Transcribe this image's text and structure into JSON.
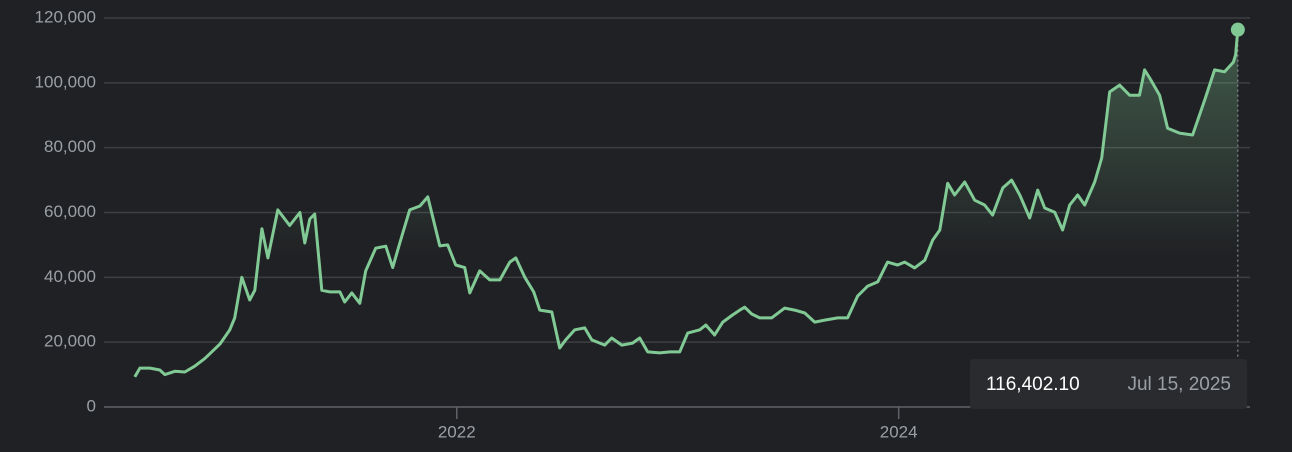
{
  "chart_data": {
    "type": "line",
    "x": [
      2020.543,
      2020.566,
      2020.611,
      2020.656,
      2020.679,
      2020.724,
      2020.769,
      2020.814,
      2020.86,
      2020.891,
      2020.928,
      2020.973,
      2020.995,
      2021.027,
      2021.063,
      2021.086,
      2021.118,
      2021.145,
      2021.19,
      2021.244,
      2021.29,
      2021.312,
      2021.335,
      2021.357,
      2021.389,
      2021.425,
      2021.471,
      2021.493,
      2021.525,
      2021.561,
      2021.588,
      2021.633,
      2021.679,
      2021.71,
      2021.742,
      2021.787,
      2021.833,
      2021.869,
      2021.923,
      2021.959,
      2021.995,
      2022.036,
      2022.059,
      2022.104,
      2022.149,
      2022.195,
      2022.24,
      2022.267,
      2022.308,
      2022.348,
      2022.376,
      2022.43,
      2022.466,
      2022.493,
      2022.534,
      2022.579,
      2022.611,
      2022.67,
      2022.701,
      2022.747,
      2022.796,
      2022.828,
      2022.864,
      2022.919,
      2022.964,
      2023.009,
      2023.045,
      2023.1,
      2023.127,
      2023.167,
      2023.204,
      2023.249,
      2023.281,
      2023.303,
      2023.335,
      2023.371,
      2023.425,
      2023.484,
      2023.529,
      2023.575,
      2023.62,
      2023.665,
      2023.724,
      2023.769,
      2023.814,
      2023.86,
      2023.905,
      2023.95,
      2023.995,
      2024.027,
      2024.072,
      2024.118,
      2024.154,
      2024.186,
      2024.222,
      2024.253,
      2024.299,
      2024.344,
      2024.389,
      2024.425,
      2024.471,
      2024.511,
      2024.548,
      2024.593,
      2024.629,
      2024.661,
      2024.706,
      2024.742,
      2024.774,
      2024.81,
      2024.842,
      2024.887,
      2024.919,
      2024.955,
      2025.0,
      2025.045,
      2025.09,
      2025.113,
      2025.136,
      2025.181,
      2025.217,
      2025.271,
      2025.33,
      2025.385,
      2025.43,
      2025.475,
      2025.515,
      2025.525,
      2025.535
    ],
    "series": [
      {
        "color": "#81c995",
        "values": [
          9300,
          12000,
          12000,
          11400,
          10000,
          11000,
          10800,
          12600,
          15000,
          17000,
          19400,
          23800,
          27500,
          40000,
          33000,
          36000,
          55000,
          46000,
          60800,
          56000,
          60000,
          50600,
          58000,
          59500,
          36000,
          35500,
          35500,
          32400,
          35200,
          32000,
          42000,
          49000,
          49600,
          43000,
          50600,
          60800,
          62000,
          64800,
          49700,
          50000,
          43800,
          43000,
          35200,
          42000,
          39200,
          39200,
          44700,
          46000,
          40000,
          35500,
          29900,
          29300,
          18200,
          20700,
          23800,
          24400,
          20700,
          19100,
          21300,
          19100,
          19700,
          21300,
          17000,
          16700,
          17000,
          17000,
          22800,
          23800,
          25300,
          22200,
          26200,
          28400,
          29900,
          30800,
          28700,
          27500,
          27500,
          30500,
          29900,
          29000,
          26200,
          26800,
          27500,
          27500,
          34200,
          37300,
          38600,
          44700,
          43800,
          44700,
          42900,
          45300,
          51500,
          54600,
          69000,
          65400,
          69400,
          63800,
          62300,
          59200,
          67600,
          70000,
          65400,
          58300,
          66900,
          61400,
          60100,
          54600,
          62300,
          65400,
          62300,
          69400,
          76800,
          97200,
          99300,
          96200,
          96200,
          104000,
          101500,
          96200,
          86000,
          84500,
          83900,
          94700,
          104000,
          103400,
          106400,
          108600,
          116402.1
        ]
      }
    ],
    "xlim": [
      2020.15,
      2025.59
    ],
    "xticks": [
      2022,
      2024
    ],
    "ylim": [
      0,
      120000
    ],
    "yticks": [
      0,
      {
        "value": 20000,
        "label": "20,000"
      },
      {
        "value": 40000,
        "label": "40,000"
      },
      {
        "value": 60000,
        "label": "60,000"
      },
      {
        "value": 80000,
        "label": "80,000"
      },
      {
        "value": 100000,
        "label": "100,000"
      },
      {
        "value": 120000,
        "label": "120,000"
      }
    ],
    "grid": true,
    "tooltip": {
      "value": 116402.1,
      "label": "116,402.10",
      "date": "Jul 15, 2025"
    }
  }
}
